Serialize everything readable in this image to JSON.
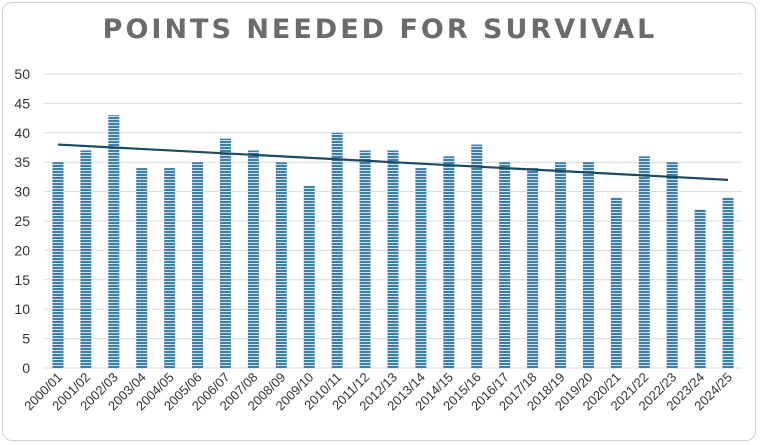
{
  "chart_data": {
    "type": "bar",
    "title": "POINTS NEEDED FOR SURVIVAL",
    "xlabel": "",
    "ylabel": "",
    "categories": [
      "2000/01",
      "2001/02",
      "2002/03",
      "2003/04",
      "2004/05",
      "2005/06",
      "2006/07",
      "2007/08",
      "2008/09",
      "2009/10",
      "2010/11",
      "2011/12",
      "2012/13",
      "2013/14",
      "2014/15",
      "2015/16",
      "2016/17",
      "2017/18",
      "2018/19",
      "2019/20",
      "2020/21",
      "2021/22",
      "2022/23",
      "2023/24",
      "2024/25"
    ],
    "values": [
      35,
      37,
      43,
      34,
      34,
      35,
      39,
      37,
      35,
      31,
      40,
      37,
      37,
      34,
      36,
      38,
      35,
      34,
      35,
      35,
      29,
      36,
      35,
      27,
      29
    ],
    "ylim": [
      0,
      50
    ],
    "yticks": [
      0,
      5,
      10,
      15,
      20,
      25,
      30,
      35,
      40,
      45,
      50
    ],
    "trendline": {
      "type": "linear",
      "start": 38,
      "end": 32
    },
    "grid": true,
    "legend": "none",
    "colors": {
      "bar": "#3d7fa8",
      "trend": "#1b4a63",
      "grid": "#d9d9d9",
      "title": "#6b6b6b"
    }
  }
}
